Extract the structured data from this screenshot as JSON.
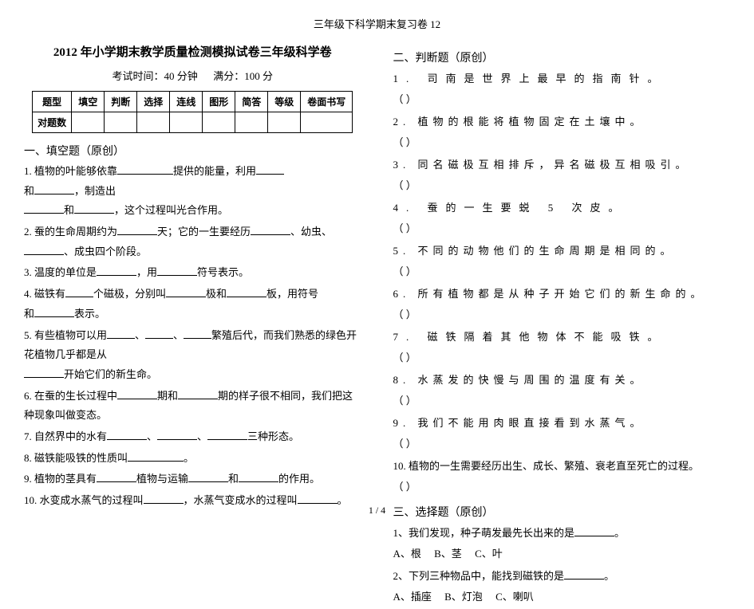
{
  "header": "三年级下科学期末复习卷 12",
  "title": "2012 年小学期末教学质量检测模拟试卷三年级科学卷",
  "exam_info_time": "考试时间：40 分钟",
  "exam_info_score": "满分：100 分",
  "table": {
    "row1_label": "题型",
    "cols": [
      "填空",
      "判断",
      "选择",
      "连线",
      "图形",
      "简答",
      "等级",
      "卷面书写"
    ],
    "row2_label": "对题数"
  },
  "sections": {
    "fill": "一、填空题（原创）",
    "judge": "二、判断题（原创）",
    "choice": "三、选择题（原创）"
  },
  "fill": {
    "q1a": "1. 植物的叶能够依靠",
    "q1b": "提供的能量，利用",
    "q1c": "和",
    "q1d": "，制造出",
    "q1e": "和",
    "q1f": "，这个过程叫光合作用。",
    "q2a": "2. 蚕的生命周期约为",
    "q2b": "天；它的一生要经历",
    "q2c": "、幼虫、",
    "q2d": "、成虫四个阶段。",
    "q3a": "3. 温度的单位是",
    "q3b": "，用",
    "q3c": "符号表示。",
    "q4a": "4. 磁铁有",
    "q4b": "个磁极，分别叫",
    "q4c": "极和",
    "q4d": "板，用符号",
    "q4e": "和",
    "q4f": "表示。",
    "q5a": "5. 有些植物可以用",
    "q5b": "、",
    "q5c": "、",
    "q5d": "繁殖后代，而我们熟悉的绿色开花植物几乎都是从",
    "q5e": "开始它们的新生命。",
    "q6a": "6. 在蚕的生长过程中",
    "q6b": "期和",
    "q6c": "期的样子很不相同，我们把这种现象叫做变态。",
    "q7a": "7. 自然界中的水有",
    "q7b": "、",
    "q7c": "、",
    "q7d": "三种形态。",
    "q8a": "8. 磁铁能吸铁的性质叫",
    "q8b": "。",
    "q9a": "9. 植物的茎具有",
    "q9b": "植物与运输",
    "q9c": "和",
    "q9d": "的作用。",
    "q10a": "10. 水变成水蒸气的过程叫",
    "q10b": "，水蒸气变成水的过程叫",
    "q10c": "。"
  },
  "judge": {
    "q1": "1. 司南是世界上最早的指南针。",
    "q2": "2. 植物的根能将植物固定在土壤中。",
    "q3": "3. 同名磁极互相排斥，异名磁极互相吸引。",
    "q4": "4. 蚕的一生要蜕 5 次皮。",
    "q5": "5. 不同的动物他们的生命周期是相同的。",
    "q6": "6. 所有植物都是从种子开始它们的新生命的。",
    "q7": "7. 磁铁隔着其他物体不能吸铁。",
    "q8": "8. 水蒸发的快慢与周围的温度有关。",
    "q9": "9. 我们不能用肉眼直接看到水蒸气。",
    "q10": "10. 植物的一生需要经历出生、成长、繁殖、衰老直至死亡的过程。",
    "paren": "（        ）"
  },
  "choice": {
    "q1": "1、我们发现，种子萌发最先长出来的是",
    "q1a": "A、根",
    "q1b": "B、茎",
    "q1c": "C、叶",
    "q2": "2、下列三种物品中，能找到磁铁的是",
    "q2a": "A、插座",
    "q2b": "B、灯泡",
    "q2c": "C、喇叭"
  },
  "page_num": "1 / 4"
}
